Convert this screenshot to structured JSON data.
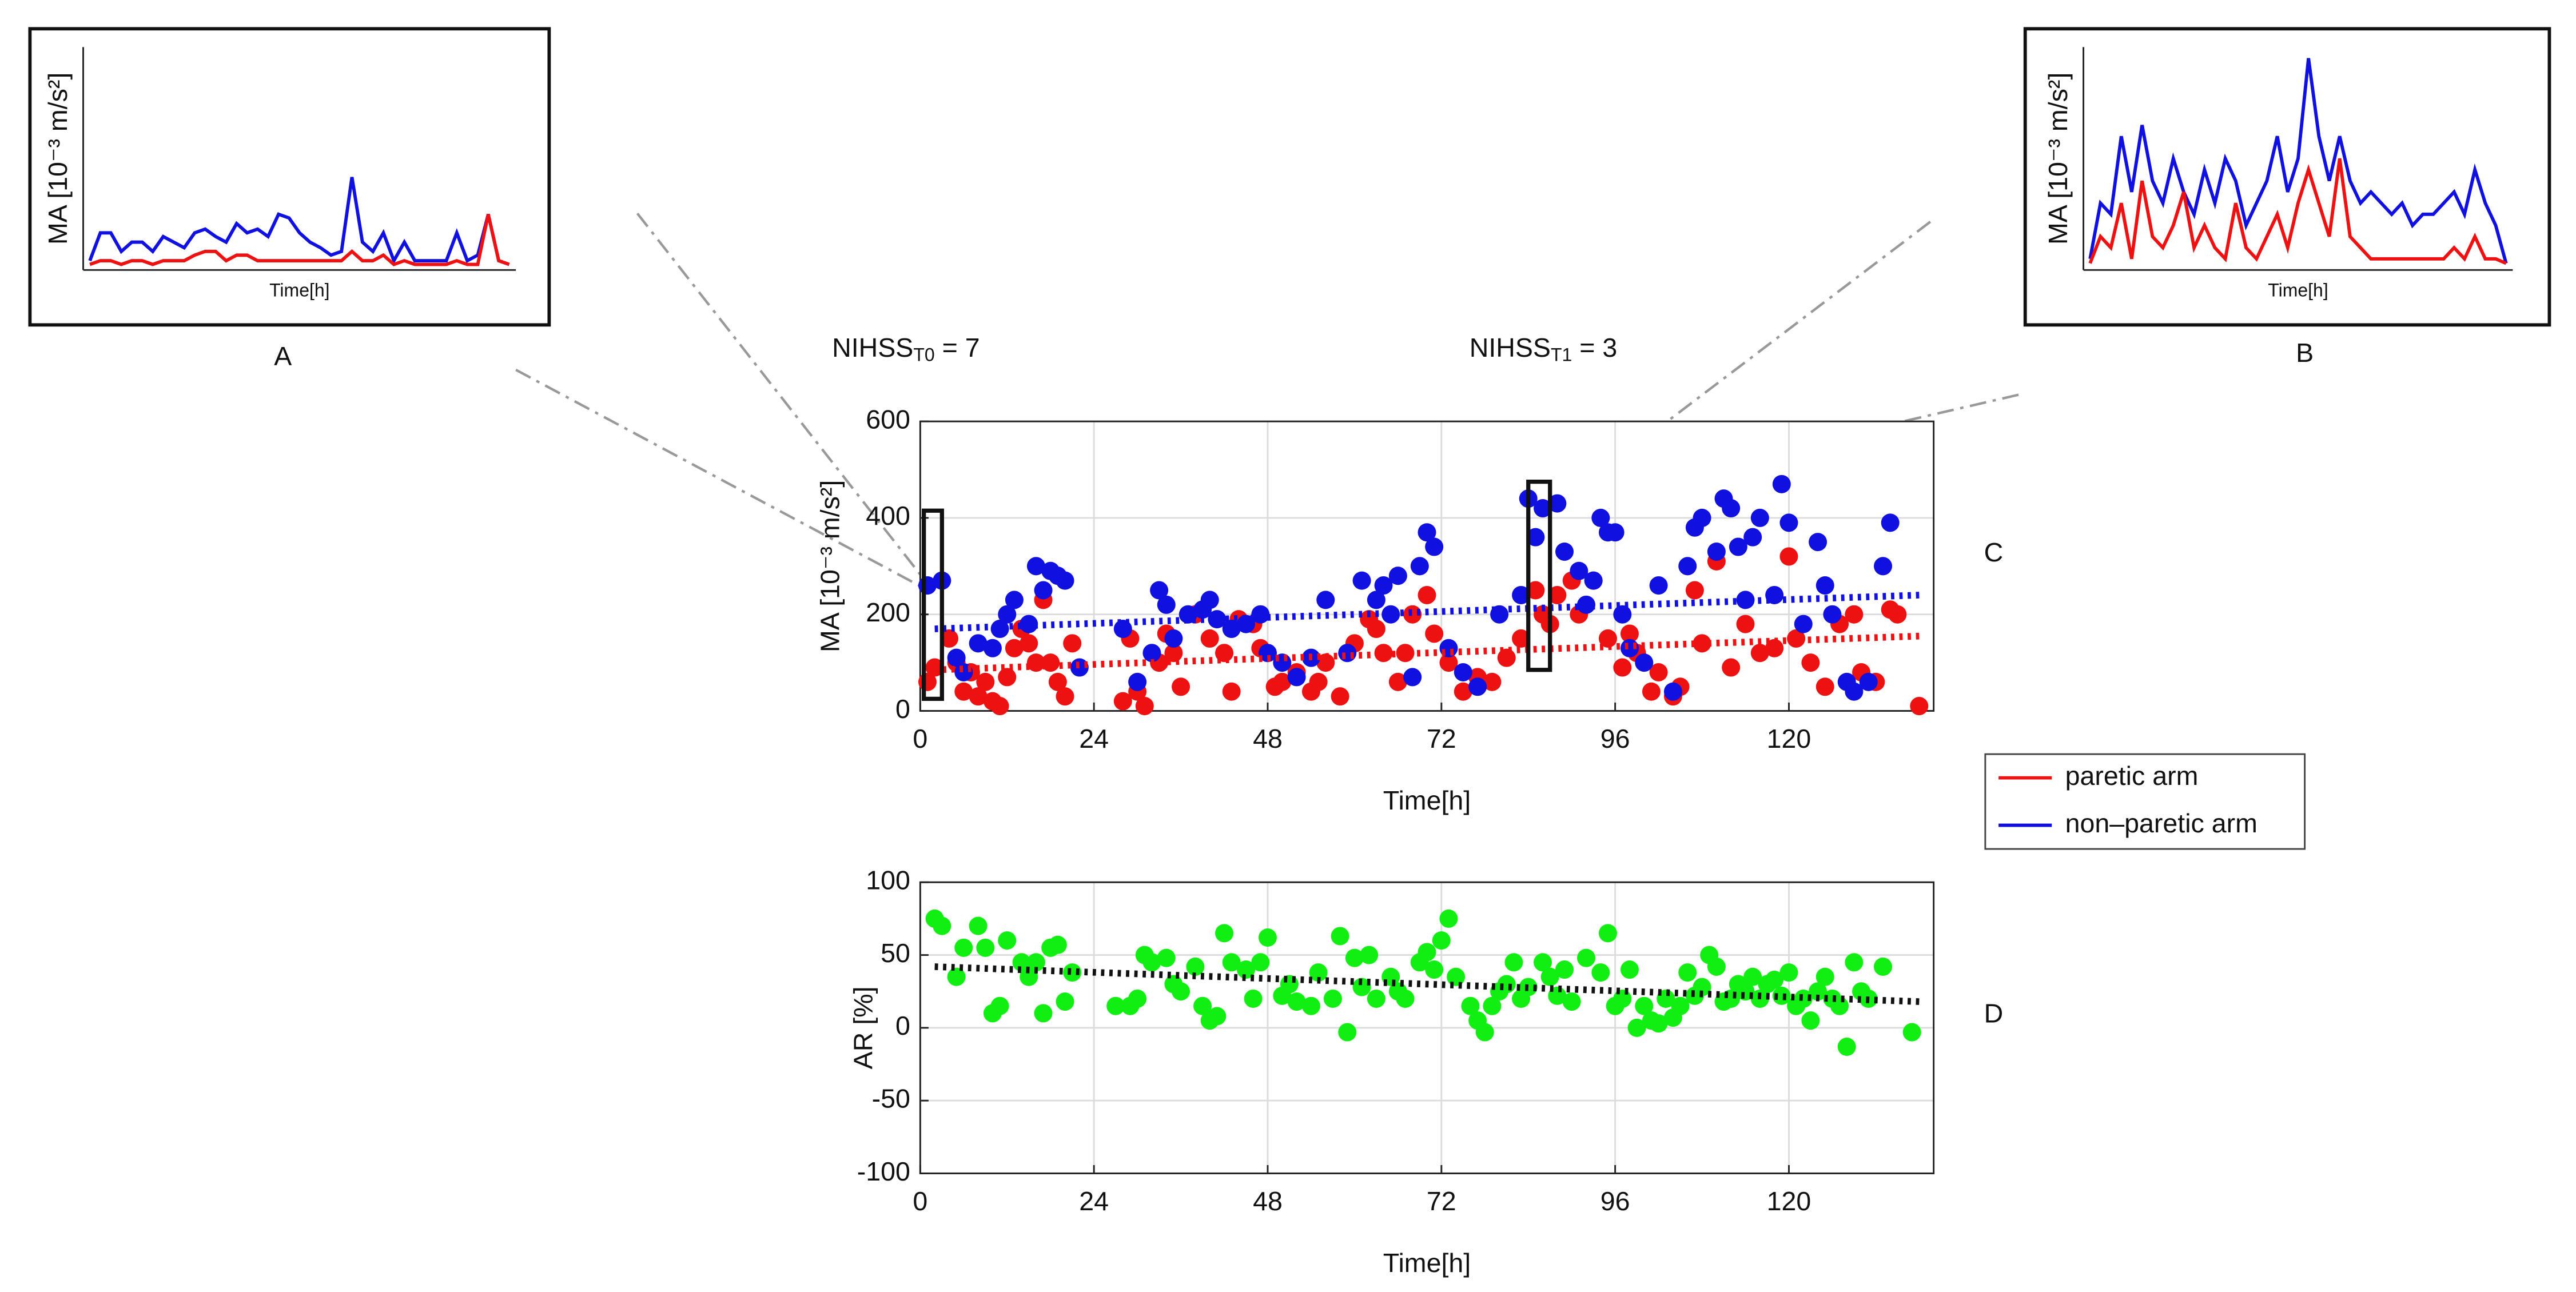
{
  "chart_data": [
    {
      "type": "line",
      "label": "A",
      "xlabel": "Time[h]",
      "ylabel": "MA [10⁻³ m/s²]",
      "ylim": [
        0,
        120
      ],
      "series": [
        {
          "name": "non–paretic arm",
          "color": "#1010e0",
          "values": [
            5,
            20,
            20,
            10,
            15,
            15,
            10,
            18,
            15,
            12,
            20,
            22,
            18,
            15,
            25,
            20,
            22,
            18,
            30,
            28,
            20,
            15,
            12,
            8,
            10,
            50,
            15,
            10,
            20,
            5,
            15,
            5,
            5,
            5,
            5,
            20,
            5,
            8,
            30,
            5,
            3
          ]
        },
        {
          "name": "paretic arm",
          "color": "#ee1111",
          "values": [
            3,
            5,
            5,
            3,
            5,
            5,
            3,
            5,
            5,
            5,
            8,
            10,
            10,
            5,
            8,
            8,
            5,
            5,
            5,
            5,
            5,
            5,
            5,
            5,
            5,
            10,
            5,
            5,
            8,
            3,
            5,
            3,
            3,
            3,
            3,
            5,
            3,
            3,
            30,
            5,
            3
          ]
        }
      ]
    },
    {
      "type": "line",
      "label": "B",
      "xlabel": "Time[h]",
      "ylabel": "MA [10⁻³ m/s²]",
      "ylim": [
        0,
        100
      ],
      "series": [
        {
          "name": "non–paretic arm",
          "color": "#1010e0",
          "values": [
            5,
            30,
            25,
            60,
            35,
            65,
            40,
            30,
            50,
            35,
            25,
            45,
            30,
            50,
            40,
            20,
            30,
            40,
            60,
            35,
            50,
            95,
            60,
            40,
            60,
            40,
            30,
            35,
            30,
            25,
            30,
            20,
            25,
            25,
            30,
            35,
            25,
            45,
            30,
            20,
            3
          ]
        },
        {
          "name": "paretic arm",
          "color": "#ee1111",
          "values": [
            3,
            15,
            10,
            30,
            5,
            40,
            15,
            10,
            20,
            35,
            10,
            20,
            10,
            5,
            30,
            10,
            5,
            15,
            25,
            10,
            30,
            45,
            30,
            15,
            50,
            15,
            10,
            5,
            5,
            5,
            5,
            5,
            5,
            5,
            5,
            10,
            5,
            15,
            5,
            5,
            3
          ]
        }
      ]
    },
    {
      "type": "scatter",
      "label": "C",
      "xlabel": "Time[h]",
      "ylabel": "MA [10⁻³ m/s²]",
      "xlim": [
        0,
        140
      ],
      "xticks": [
        0,
        24,
        48,
        72,
        96,
        120
      ],
      "ylim": [
        0,
        600
      ],
      "yticks": [
        0,
        200,
        400,
        600
      ],
      "grid": true,
      "legend": "right",
      "annotations": [
        {
          "text": "NIHSS",
          "sub": "T0",
          "rest": " = 7"
        },
        {
          "text": "NIHSS",
          "sub": "T1",
          "rest": " = 3"
        }
      ],
      "highlights": [
        {
          "x": [
            0.5,
            3
          ],
          "y": [
            25,
            415
          ]
        },
        {
          "x": [
            84,
            87
          ],
          "y": [
            85,
            475
          ]
        }
      ],
      "series": [
        {
          "name": "paretic arm",
          "color": "#ee1111",
          "x": [
            1,
            2,
            4,
            5,
            6,
            7,
            8,
            9,
            10,
            11,
            12,
            13,
            14,
            15,
            16,
            17,
            18,
            19,
            20,
            21,
            28,
            29,
            30,
            31,
            33,
            34,
            35,
            36,
            38,
            40,
            42,
            43,
            44,
            46,
            47,
            49,
            50,
            52,
            54,
            55,
            56,
            58,
            60,
            62,
            63,
            64,
            66,
            67,
            68,
            70,
            71,
            73,
            75,
            77,
            79,
            81,
            83,
            85,
            86,
            87,
            88,
            90,
            91,
            93,
            95,
            97,
            98,
            99,
            101,
            102,
            104,
            105,
            107,
            108,
            110,
            112,
            114,
            116,
            118,
            120,
            121,
            123,
            125,
            127,
            129,
            130,
            132,
            134,
            135,
            138
          ],
          "values": [
            60,
            90,
            150,
            100,
            40,
            80,
            30,
            60,
            20,
            10,
            70,
            130,
            170,
            140,
            100,
            230,
            100,
            60,
            30,
            140,
            20,
            150,
            40,
            10,
            100,
            160,
            120,
            50,
            200,
            150,
            120,
            40,
            190,
            180,
            130,
            50,
            60,
            80,
            40,
            60,
            100,
            30,
            140,
            190,
            170,
            120,
            60,
            120,
            200,
            240,
            160,
            100,
            40,
            70,
            60,
            110,
            150,
            250,
            200,
            180,
            240,
            270,
            200,
            270,
            150,
            90,
            160,
            120,
            40,
            80,
            30,
            50,
            250,
            140,
            310,
            90,
            180,
            120,
            130,
            320,
            150,
            100,
            50,
            180,
            200,
            80,
            60,
            210,
            200,
            10
          ],
          "trend": {
            "x": [
              2,
              138
            ],
            "values": [
              85,
              155
            ]
          }
        },
        {
          "name": "non–paretic arm",
          "color": "#1010e0",
          "x": [
            1,
            3,
            5,
            6,
            8,
            10,
            11,
            12,
            13,
            15,
            16,
            17,
            18,
            19,
            20,
            22,
            28,
            30,
            32,
            33,
            34,
            35,
            37,
            39,
            40,
            41,
            43,
            45,
            47,
            48,
            50,
            52,
            54,
            56,
            59,
            61,
            63,
            64,
            65,
            66,
            68,
            69,
            70,
            71,
            73,
            75,
            77,
            80,
            83,
            84,
            85,
            86,
            88,
            89,
            91,
            92,
            93,
            94,
            95,
            96,
            97,
            98,
            100,
            102,
            104,
            106,
            107,
            108,
            110,
            111,
            112,
            113,
            114,
            115,
            116,
            118,
            119,
            120,
            122,
            124,
            125,
            126,
            128,
            129,
            131,
            133,
            134
          ],
          "values": [
            260,
            270,
            110,
            80,
            140,
            130,
            170,
            200,
            230,
            180,
            300,
            250,
            290,
            280,
            270,
            90,
            170,
            60,
            120,
            250,
            220,
            150,
            200,
            210,
            230,
            190,
            170,
            180,
            200,
            120,
            100,
            70,
            110,
            230,
            120,
            270,
            230,
            260,
            200,
            280,
            70,
            300,
            370,
            340,
            130,
            80,
            50,
            200,
            240,
            440,
            360,
            420,
            430,
            330,
            290,
            220,
            270,
            400,
            370,
            370,
            200,
            130,
            100,
            260,
            40,
            300,
            380,
            400,
            330,
            440,
            420,
            340,
            230,
            360,
            400,
            240,
            470,
            390,
            180,
            350,
            260,
            200,
            60,
            40,
            60,
            300,
            390
          ],
          "trend": {
            "x": [
              2,
              138
            ],
            "values": [
              170,
              240
            ]
          }
        }
      ]
    },
    {
      "type": "scatter",
      "label": "D",
      "xlabel": "Time[h]",
      "ylabel": "AR [%]",
      "xlim": [
        0,
        140
      ],
      "xticks": [
        0,
        24,
        48,
        72,
        96,
        120
      ],
      "ylim": [
        -100,
        100
      ],
      "yticks": [
        -100,
        -50,
        0,
        50,
        100
      ],
      "grid": true,
      "series": [
        {
          "color": "#11ee11",
          "x": [
            2,
            3,
            5,
            6,
            8,
            9,
            10,
            11,
            12,
            14,
            15,
            16,
            17,
            18,
            19,
            20,
            21,
            27,
            29,
            30,
            31,
            32,
            34,
            35,
            36,
            38,
            39,
            40,
            41,
            42,
            43,
            45,
            46,
            47,
            48,
            50,
            51,
            52,
            54,
            55,
            57,
            58,
            59,
            60,
            61,
            62,
            63,
            65,
            66,
            67,
            69,
            70,
            71,
            72,
            73,
            74,
            76,
            77,
            78,
            79,
            80,
            81,
            82,
            83,
            84,
            86,
            87,
            88,
            89,
            90,
            92,
            94,
            95,
            96,
            97,
            98,
            99,
            100,
            101,
            102,
            103,
            104,
            105,
            106,
            107,
            108,
            109,
            110,
            111,
            112,
            113,
            114,
            115,
            116,
            117,
            118,
            119,
            120,
            121,
            122,
            123,
            124,
            125,
            126,
            127,
            128,
            129,
            130,
            131,
            133,
            137
          ],
          "values": [
            75,
            70,
            35,
            55,
            70,
            55,
            10,
            15,
            60,
            45,
            35,
            45,
            10,
            55,
            57,
            18,
            38,
            15,
            15,
            20,
            50,
            45,
            48,
            30,
            25,
            42,
            15,
            5,
            8,
            65,
            45,
            40,
            20,
            45,
            62,
            22,
            30,
            18,
            15,
            38,
            20,
            63,
            -3,
            48,
            28,
            50,
            20,
            35,
            25,
            20,
            45,
            52,
            40,
            60,
            75,
            35,
            15,
            5,
            -3,
            15,
            25,
            30,
            45,
            20,
            28,
            45,
            35,
            22,
            40,
            18,
            48,
            38,
            65,
            15,
            20,
            40,
            0,
            15,
            5,
            3,
            20,
            7,
            15,
            38,
            22,
            28,
            50,
            42,
            18,
            20,
            30,
            25,
            35,
            20,
            30,
            33,
            22,
            38,
            15,
            20,
            5,
            25,
            35,
            20,
            15,
            -13,
            45,
            25,
            20,
            42,
            -3
          ],
          "trend": {
            "color": "#111111",
            "x": [
              2,
              138
            ],
            "values": [
              42,
              18
            ]
          }
        }
      ]
    }
  ]
}
